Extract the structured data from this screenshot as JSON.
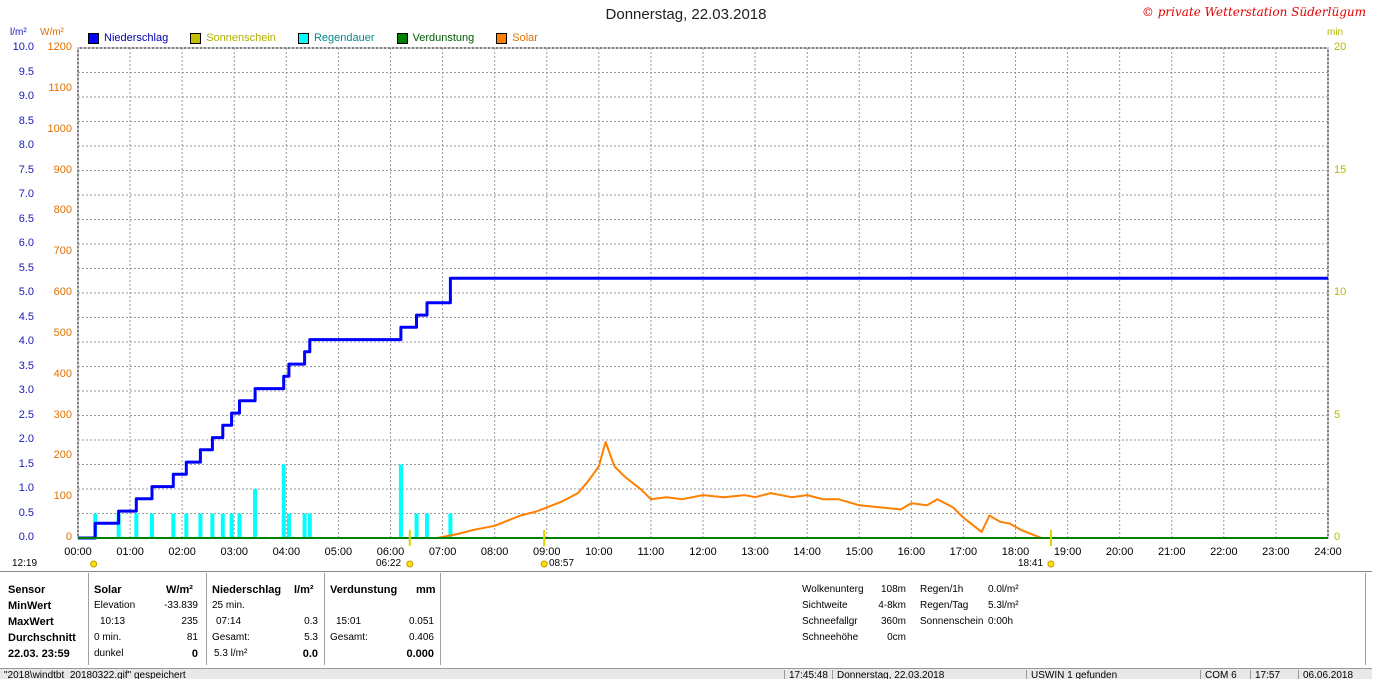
{
  "header": {
    "title": "Donnerstag, 22.03.2018",
    "copyright": "© private Wetterstation Süderlügum",
    "unit_left": "l/m²",
    "unit_mid": "W/m²",
    "unit_right": "min"
  },
  "legend": [
    {
      "label": "Niederschlag",
      "color": "#0000ff"
    },
    {
      "label": "Sonnenschein",
      "color": "#c0c000"
    },
    {
      "label": "Regendauer",
      "color": "#00ffff"
    },
    {
      "label": "Verdunstung",
      "color": "#008000"
    },
    {
      "label": "Solar",
      "color": "#ff8000"
    }
  ],
  "sun": {
    "moonrise": "12:19",
    "sunrise": "06:22",
    "noon": "08:57",
    "sunset": "18:41"
  },
  "chart_data": {
    "type": "line",
    "title": "Donnerstag, 22.03.2018",
    "x_range_hours": [
      0,
      24
    ],
    "x_ticks": [
      "00:00",
      "01:00",
      "02:00",
      "03:00",
      "04:00",
      "05:00",
      "06:00",
      "07:00",
      "08:00",
      "09:00",
      "10:00",
      "11:00",
      "12:00",
      "13:00",
      "14:00",
      "15:00",
      "16:00",
      "17:00",
      "18:00",
      "19:00",
      "20:00",
      "21:00",
      "22:00",
      "23:00",
      "24:00"
    ],
    "axes": {
      "left": {
        "label": "l/m²",
        "range": [
          0,
          10
        ],
        "ticks": [
          "0.0",
          "0.5",
          "1.0",
          "1.5",
          "2.0",
          "2.5",
          "3.0",
          "3.5",
          "4.0",
          "4.5",
          "5.0",
          "5.5",
          "6.0",
          "6.5",
          "7.0",
          "7.5",
          "8.0",
          "8.5",
          "9.0",
          "9.5",
          "10.0"
        ]
      },
      "mid": {
        "label": "W/m²",
        "range": [
          0,
          1200
        ],
        "ticks": [
          "0",
          "100",
          "200",
          "300",
          "400",
          "500",
          "600",
          "700",
          "800",
          "900",
          "1000",
          "1100",
          "1200"
        ]
      },
      "right": {
        "label": "min",
        "range": [
          0,
          20
        ],
        "ticks": [
          "0",
          "5",
          "10",
          "15",
          "20"
        ]
      }
    },
    "grid": true,
    "series": [
      {
        "name": "Niederschlag",
        "color": "#0000ff",
        "axis": "left",
        "x": [
          0.0,
          0.33,
          0.33,
          0.78,
          0.78,
          1.12,
          1.12,
          1.42,
          1.42,
          1.83,
          1.83,
          2.08,
          2.08,
          2.35,
          2.35,
          2.58,
          2.58,
          2.78,
          2.78,
          2.95,
          2.95,
          3.1,
          3.1,
          3.4,
          3.4,
          3.95,
          3.95,
          4.05,
          4.05,
          4.35,
          4.35,
          4.45,
          4.45,
          6.2,
          6.2,
          6.5,
          6.5,
          6.7,
          6.7,
          7.15,
          7.15,
          24.0
        ],
        "y": [
          0.0,
          0.0,
          0.3,
          0.3,
          0.55,
          0.55,
          0.8,
          0.8,
          1.05,
          1.05,
          1.3,
          1.3,
          1.55,
          1.55,
          1.8,
          1.8,
          2.05,
          2.05,
          2.3,
          2.3,
          2.55,
          2.55,
          2.8,
          2.8,
          3.05,
          3.05,
          3.3,
          3.3,
          3.55,
          3.55,
          3.8,
          3.8,
          4.05,
          4.05,
          4.3,
          4.3,
          4.55,
          4.55,
          4.8,
          4.8,
          5.3,
          5.3
        ]
      },
      {
        "name": "Solar",
        "color": "#ff8000",
        "axis": "mid",
        "x": [
          6.9,
          7.3,
          7.6,
          8.0,
          8.3,
          8.5,
          8.8,
          9.0,
          9.3,
          9.6,
          9.8,
          10.0,
          10.13,
          10.3,
          10.5,
          10.8,
          11.0,
          11.3,
          11.6,
          12.0,
          12.4,
          12.8,
          13.0,
          13.3,
          13.7,
          14.0,
          14.3,
          14.6,
          15.0,
          15.4,
          15.8,
          16.0,
          16.3,
          16.5,
          16.8,
          17.0,
          17.2,
          17.35,
          17.5,
          17.7,
          17.9,
          18.1,
          18.3,
          18.5
        ],
        "y": [
          0,
          10,
          20,
          30,
          45,
          55,
          65,
          75,
          90,
          110,
          140,
          175,
          235,
          175,
          150,
          120,
          95,
          100,
          95,
          105,
          100,
          105,
          100,
          110,
          100,
          105,
          95,
          95,
          80,
          75,
          70,
          85,
          80,
          95,
          75,
          50,
          30,
          15,
          55,
          40,
          35,
          20,
          10,
          0
        ]
      },
      {
        "name": "Verdunstung",
        "color": "#008000",
        "axis": "left",
        "x": [
          0,
          24
        ],
        "y": [
          0,
          0
        ]
      }
    ],
    "bars": {
      "name": "Regendauer",
      "color": "#00ffff",
      "axis": "right",
      "x": [
        0.33,
        0.78,
        1.12,
        1.42,
        1.83,
        2.08,
        2.35,
        2.58,
        2.78,
        2.95,
        3.1,
        3.4,
        3.95,
        4.05,
        4.35,
        4.45,
        6.2,
        6.5,
        6.7,
        7.15
      ],
      "y": [
        1,
        1,
        1,
        1,
        1,
        1,
        1,
        1,
        1,
        1,
        1,
        2,
        3,
        1,
        1,
        1,
        3,
        1,
        1,
        1
      ]
    }
  },
  "stats": {
    "sensor": {
      "header": "Sensor",
      "min": "MinWert",
      "max": "MaxWert",
      "avg": "Durchschnitt",
      "time": "22.03. 23:59"
    },
    "solar": {
      "header": "Solar",
      "unit": "W/m²",
      "r1a": "Elevation",
      "r1b": "-33.839",
      "r2a": "10:13",
      "r2b": "235",
      "r3a": "0 min.",
      "r3b": "81",
      "r4a": "dunkel",
      "r4b": "0"
    },
    "rain": {
      "header": "Niederschlag",
      "unit": "l/m²",
      "r1a": "25 min.",
      "r2a": "07:14",
      "r2b": "0.3",
      "r3a": "Gesamt:",
      "r3b": "5.3",
      "r4a": "5.3 l/m²",
      "r4b": "0.0"
    },
    "evap": {
      "header": "Verdunstung",
      "unit": "mm",
      "r2a": "15:01",
      "r2b": "0.051",
      "r3a": "Gesamt:",
      "r3b": "0.406",
      "r4b": "0.000"
    },
    "weather": {
      "l1": "Wolkenunterg",
      "v1": "108m",
      "l2": "Sichtweite",
      "v2": "4-8km",
      "l3": "Schneefallgr",
      "v3": "360m",
      "l4": "Schneehöhe",
      "v4": "0cm"
    },
    "rainstats": {
      "l1": "Regen/1h",
      "v1": "0.0l/m²",
      "l2": "Regen/Tag",
      "v2": "5.3l/m²",
      "l3": "Sonnenschein",
      "v3": "0:00h"
    }
  },
  "statusbar": {
    "file": "\"2018\\windtbt_20180322.gif\" gespeichert",
    "time": "17:45:48",
    "date": "Donnerstag, 22.03.2018",
    "usb": "USWIN 1 gefunden",
    "com": "COM 6",
    "clock": "17:57",
    "today": "06.06.2018"
  }
}
